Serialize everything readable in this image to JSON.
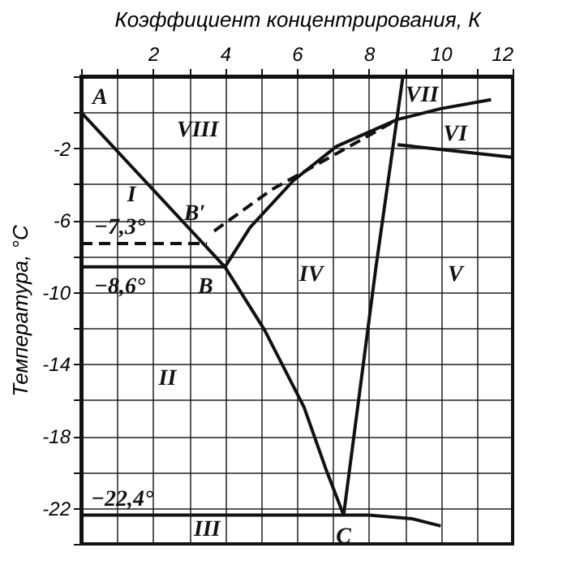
{
  "chart_data": {
    "type": "line",
    "xlabel": "Коэффициент концентрирования, К",
    "ylabel": "Температура, °С",
    "xlim": [
      0,
      12
    ],
    "ylim": [
      -24,
      2
    ],
    "xticks": [
      {
        "value": 0,
        "label": null
      },
      {
        "value": 1,
        "label": null
      },
      2,
      {
        "value": 3,
        "label": null
      },
      4,
      {
        "value": 5,
        "label": null
      },
      6,
      {
        "value": 7,
        "label": null
      },
      8,
      {
        "value": 9,
        "label": null
      },
      10,
      {
        "value": 11,
        "label": null
      },
      12
    ],
    "yticks": [
      {
        "value": 2,
        "label": null
      },
      {
        "value": 0,
        "label": null
      },
      -2,
      {
        "value": -4,
        "label": null
      },
      -6,
      {
        "value": -8,
        "label": null
      },
      -10,
      {
        "value": -12,
        "label": null
      },
      -14,
      {
        "value": -16,
        "label": null
      },
      -18,
      {
        "value": -20,
        "label": null
      },
      -22,
      {
        "value": -24,
        "label": null
      }
    ],
    "grid": true,
    "marker": "none",
    "series": [
      {
        "color": "#111111",
        "x": [
          0,
          4,
          5.1,
          6.2,
          6.8,
          7.3
        ],
        "values": [
          0,
          -8.6,
          -12.1,
          -16.4,
          -19.8,
          -22.4
        ]
      },
      {
        "color": "#111111",
        "x": [
          7.3,
          8.2,
          8.95
        ],
        "values": [
          -22.4,
          -8.6,
          2
        ]
      },
      {
        "color": "#111111",
        "x": [
          4,
          4.7,
          5.9,
          7.1,
          8.8,
          10,
          11.4
        ],
        "values": [
          -8.6,
          -6.4,
          -3.8,
          -1.9,
          -0.4,
          0.2,
          0.7
        ]
      },
      {
        "color": "#111111",
        "line_style": "dashed",
        "x": [
          3.7,
          5.3,
          7.1,
          8.8
        ],
        "values": [
          -6.6,
          -4.3,
          -2.3,
          -0.4
        ]
      },
      {
        "color": "#111111",
        "line_style": "dashed",
        "x": [
          0,
          3.5
        ],
        "values": [
          -7.3,
          -7.3
        ]
      },
      {
        "color": "#111111",
        "x": [
          0,
          4
        ],
        "values": [
          -8.6,
          -8.6
        ]
      },
      {
        "color": "#111111",
        "x": [
          8.8,
          12
        ],
        "values": [
          -1.8,
          -2.5
        ]
      },
      {
        "color": "#111111",
        "x": [
          0,
          7.3,
          8,
          9.2,
          10
        ],
        "values": [
          -22.4,
          -22.4,
          -22.4,
          -22.6,
          -23
        ]
      }
    ],
    "annotations": [
      {
        "text": "A",
        "x": 0,
        "y": 0
      },
      {
        "text": "B′",
        "x": 3.7,
        "y": -6.6
      },
      {
        "text": "B",
        "x": 4,
        "y": -8.6
      },
      {
        "text": "C",
        "x": 7.3,
        "y": -22.4
      },
      {
        "text": "−7,3°",
        "x": 0,
        "y": -7.3
      },
      {
        "text": "−8,6°",
        "x": 0,
        "y": -8.6
      },
      {
        "text": "−22,4°",
        "x": 0,
        "y": -22.4
      },
      "I",
      "II",
      "III",
      "IV",
      "V",
      "VI",
      "VII",
      "VIII"
    ]
  }
}
